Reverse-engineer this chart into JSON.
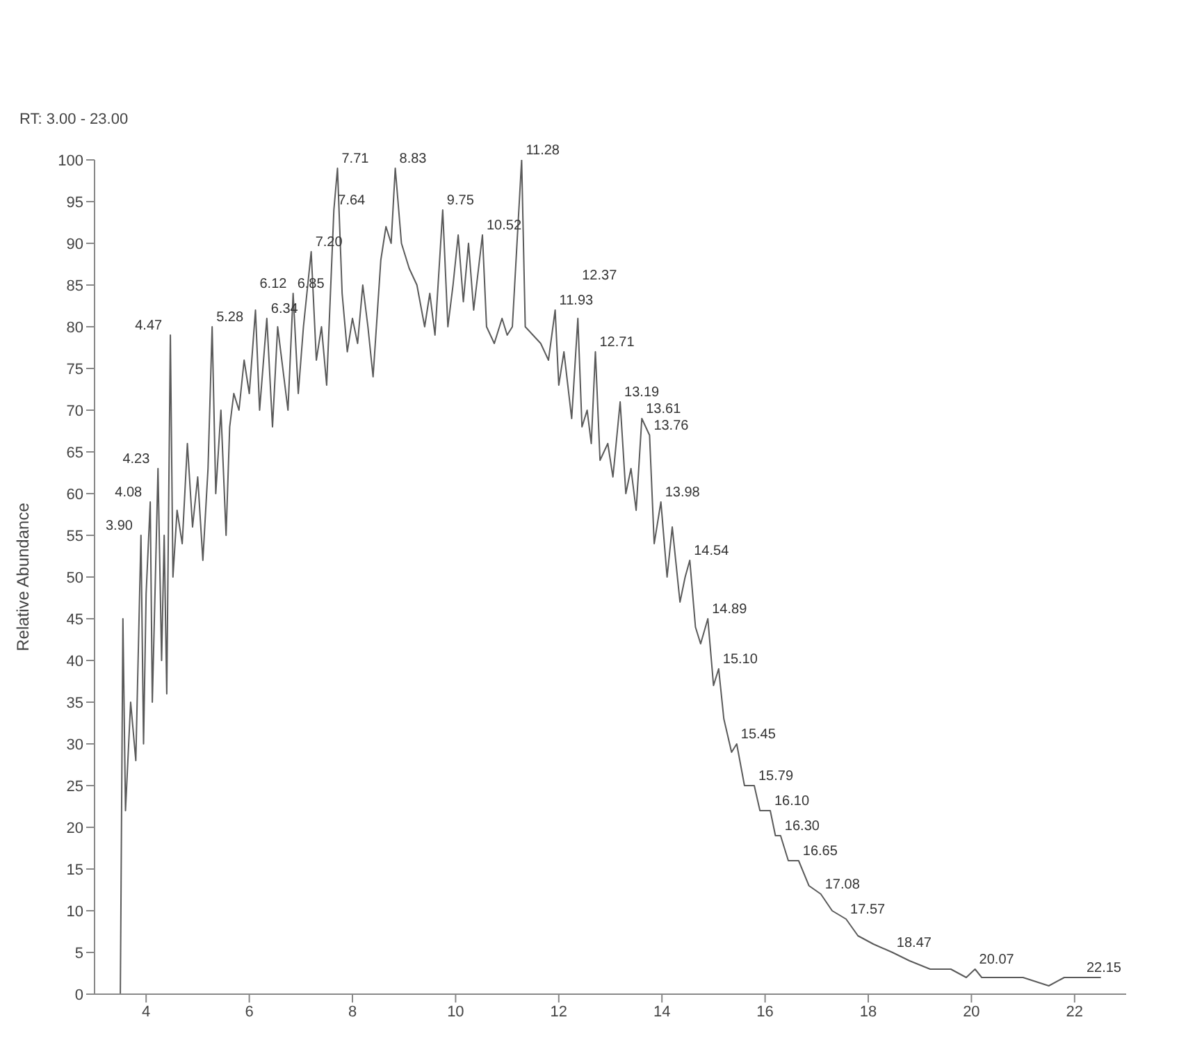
{
  "chart_data": {
    "type": "line",
    "ylabel": "Relative Abundance",
    "color": "#5a5a5a",
    "grid": false,
    "legend": false,
    "marker": "none",
    "line_style": "solid",
    "xlim": [
      3,
      23
    ],
    "xticks": [
      4,
      6,
      8,
      10,
      12,
      14,
      16,
      18,
      20,
      22
    ],
    "ylim": [
      0,
      100
    ],
    "yticks": [
      0,
      5,
      10,
      15,
      20,
      25,
      30,
      35,
      40,
      45,
      50,
      55,
      60,
      65,
      70,
      75,
      80,
      85,
      90,
      95,
      100
    ],
    "x": [
      3.5,
      3.55,
      3.6,
      3.7,
      3.8,
      3.9,
      3.95,
      4.0,
      4.08,
      4.12,
      4.18,
      4.23,
      4.3,
      4.35,
      4.4,
      4.47,
      4.52,
      4.6,
      4.7,
      4.8,
      4.9,
      5.0,
      5.1,
      5.2,
      5.28,
      5.35,
      5.45,
      5.55,
      5.62,
      5.7,
      5.8,
      5.9,
      6.0,
      6.12,
      6.2,
      6.34,
      6.45,
      6.55,
      6.65,
      6.75,
      6.85,
      6.95,
      7.05,
      7.2,
      7.3,
      7.4,
      7.5,
      7.64,
      7.71,
      7.8,
      7.9,
      8.0,
      8.1,
      8.2,
      8.3,
      8.4,
      8.55,
      8.65,
      8.75,
      8.83,
      8.95,
      9.1,
      9.25,
      9.4,
      9.5,
      9.6,
      9.75,
      9.85,
      9.95,
      10.05,
      10.15,
      10.25,
      10.35,
      10.52,
      10.6,
      10.75,
      10.9,
      11.0,
      11.1,
      11.28,
      11.35,
      11.5,
      11.65,
      11.8,
      11.93,
      12.0,
      12.1,
      12.25,
      12.37,
      12.45,
      12.55,
      12.63,
      12.71,
      12.8,
      12.95,
      13.05,
      13.19,
      13.3,
      13.4,
      13.5,
      13.61,
      13.76,
      13.85,
      13.98,
      14.1,
      14.2,
      14.35,
      14.45,
      14.54,
      14.65,
      14.75,
      14.89,
      15.0,
      15.1,
      15.2,
      15.35,
      15.45,
      15.6,
      15.79,
      15.9,
      16.1,
      16.2,
      16.3,
      16.45,
      16.65,
      16.85,
      17.08,
      17.3,
      17.57,
      17.8,
      18.1,
      18.47,
      18.8,
      19.2,
      19.6,
      19.9,
      20.07,
      20.2,
      20.6,
      21.0,
      21.5,
      21.8,
      22.15,
      22.5
    ],
    "values": [
      0,
      45,
      22,
      35,
      28,
      55,
      30,
      48,
      59,
      35,
      50,
      63,
      40,
      55,
      36,
      79,
      50,
      58,
      54,
      66,
      56,
      62,
      52,
      63,
      80,
      60,
      70,
      55,
      68,
      72,
      70,
      76,
      72,
      82,
      70,
      81,
      68,
      80,
      75,
      70,
      84,
      72,
      80,
      89,
      76,
      80,
      73,
      94,
      99,
      84,
      77,
      81,
      78,
      85,
      80,
      74,
      88,
      92,
      90,
      99,
      90,
      87,
      85,
      80,
      84,
      79,
      94,
      80,
      85,
      91,
      83,
      90,
      82,
      91,
      80,
      78,
      81,
      79,
      80,
      100,
      80,
      79,
      78,
      76,
      82,
      73,
      77,
      69,
      81,
      68,
      70,
      66,
      77,
      64,
      66,
      62,
      71,
      60,
      63,
      58,
      69,
      67,
      54,
      59,
      50,
      56,
      47,
      50,
      52,
      44,
      42,
      45,
      37,
      39,
      33,
      29,
      30,
      25,
      25,
      22,
      22,
      19,
      19,
      16,
      16,
      13,
      12,
      10,
      9,
      7,
      6,
      5,
      4,
      3,
      3,
      2,
      3,
      2,
      2,
      2,
      1,
      2,
      2,
      2
    ],
    "annotations": [
      "RT: 3.00 - 23.00",
      {
        "text": "3.90",
        "x": 3.9,
        "y": 55
      },
      {
        "text": "4.08",
        "x": 4.08,
        "y": 59
      },
      {
        "text": "4.23",
        "x": 4.23,
        "y": 63
      },
      {
        "text": "4.47",
        "x": 4.47,
        "y": 79
      },
      {
        "text": "5.28",
        "x": 5.28,
        "y": 80
      },
      {
        "text": "6.12",
        "x": 6.12,
        "y": 82
      },
      {
        "text": "6.34",
        "x": 6.34,
        "y": 81
      },
      {
        "text": "6.85",
        "x": 6.85,
        "y": 84
      },
      {
        "text": "7.20",
        "x": 7.2,
        "y": 89
      },
      {
        "text": "7.64",
        "x": 7.64,
        "y": 94
      },
      {
        "text": "7.71",
        "x": 7.71,
        "y": 99
      },
      {
        "text": "8.83",
        "x": 8.83,
        "y": 99
      },
      {
        "text": "9.75",
        "x": 9.75,
        "y": 94
      },
      {
        "text": "10.52",
        "x": 10.52,
        "y": 91
      },
      {
        "text": "11.28",
        "x": 11.28,
        "y": 100
      },
      {
        "text": "11.93",
        "x": 11.93,
        "y": 82
      },
      {
        "text": "12.37",
        "x": 12.37,
        "y": 81
      },
      {
        "text": "12.71",
        "x": 12.71,
        "y": 77
      },
      {
        "text": "13.19",
        "x": 13.19,
        "y": 71
      },
      {
        "text": "13.61",
        "x": 13.61,
        "y": 69
      },
      {
        "text": "13.76",
        "x": 13.76,
        "y": 67
      },
      {
        "text": "13.98",
        "x": 13.98,
        "y": 59
      },
      {
        "text": "14.54",
        "x": 14.54,
        "y": 52
      },
      {
        "text": "14.89",
        "x": 14.89,
        "y": 45
      },
      {
        "text": "15.10",
        "x": 15.1,
        "y": 39
      },
      {
        "text": "15.45",
        "x": 15.45,
        "y": 30
      },
      {
        "text": "15.79",
        "x": 15.79,
        "y": 25
      },
      {
        "text": "16.10",
        "x": 16.1,
        "y": 22
      },
      {
        "text": "16.30",
        "x": 16.3,
        "y": 19
      },
      {
        "text": "16.65",
        "x": 16.65,
        "y": 16
      },
      {
        "text": "17.08",
        "x": 17.08,
        "y": 12
      },
      {
        "text": "17.57",
        "x": 17.57,
        "y": 9
      },
      {
        "text": "18.47",
        "x": 18.47,
        "y": 5
      },
      {
        "text": "20.07",
        "x": 20.07,
        "y": 3
      },
      {
        "text": "22.15",
        "x": 22.15,
        "y": 2
      }
    ]
  }
}
